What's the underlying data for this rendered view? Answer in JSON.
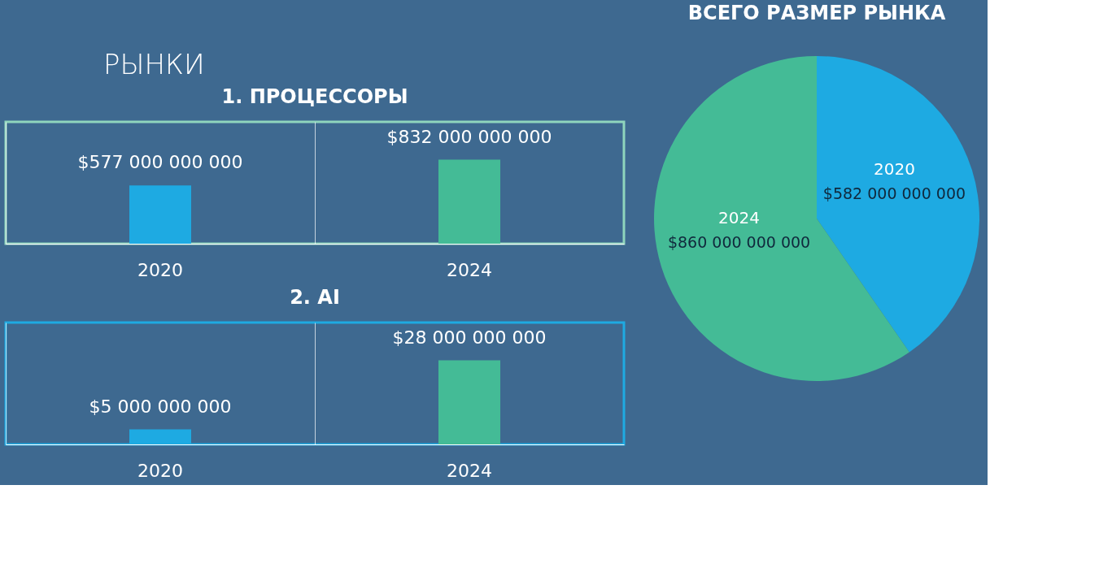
{
  "chart_data": [
    {
      "type": "other",
      "title": "РЫНКИ"
    },
    {
      "type": "bar",
      "title": "1. ПРОЦЕССОРЫ",
      "categories": [
        "2020",
        "2024"
      ],
      "values": [
        577000000000,
        832000000000
      ],
      "colors": [
        "#1eaae2",
        "#44bb96"
      ],
      "value_labels": [
        "$577 000 000 000",
        "$832 000 000 000"
      ],
      "grid": "x"
    },
    {
      "type": "bar",
      "title": "2. AI",
      "categories": [
        "2020",
        "2024"
      ],
      "values": [
        5000000000,
        28000000000
      ],
      "colors": [
        "#1eaae2",
        "#44bb96"
      ],
      "value_labels": [
        "$5 000 000 000",
        "$28 000 000 000"
      ],
      "grid": "x"
    },
    {
      "type": "pie",
      "title": "ВСЕГО РАЗМЕР РЫНКА",
      "categories": [
        "2020",
        "2024"
      ],
      "values": [
        582000000000,
        860000000000
      ],
      "colors": [
        "#1eaae2",
        "#44bb96"
      ],
      "value_labels": [
        "$582 000 000 000",
        "$860 000 000 000"
      ]
    }
  ]
}
